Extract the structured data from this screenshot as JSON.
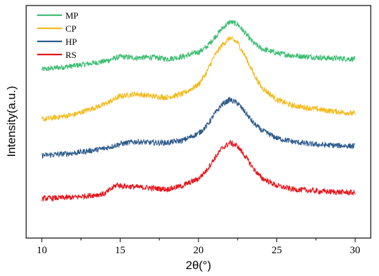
{
  "chart_data": {
    "type": "line",
    "title": "",
    "xlabel": "2θ(°)",
    "ylabel": "Intensity(a.u.)",
    "xlim": [
      9,
      31
    ],
    "ylim": [
      0,
      100
    ],
    "x_ticks": [
      10,
      15,
      20,
      25,
      30
    ],
    "y_ticks": [],
    "grid": false,
    "legend": {
      "placement": "top-left"
    },
    "series": [
      {
        "name": "MP",
        "color": "#3dbd72",
        "x": [
          10,
          12,
          14,
          15,
          16,
          17,
          18,
          19,
          20,
          20.5,
          21,
          21.5,
          22,
          22.5,
          23,
          23.5,
          24,
          25,
          26,
          27,
          28,
          30
        ],
        "y": [
          72.5,
          74,
          76,
          78,
          77.5,
          77.8,
          77,
          78,
          80,
          82,
          86,
          90,
          93,
          92,
          88,
          84,
          81.5,
          79.5,
          78.5,
          78,
          77.5,
          77
        ]
      },
      {
        "name": "CP",
        "color": "#f4ba1b",
        "x": [
          10,
          12,
          14,
          15,
          16,
          17,
          18,
          19,
          20,
          20.5,
          21,
          21.5,
          22,
          22.5,
          23,
          23.5,
          24,
          25,
          26,
          27,
          28,
          30
        ],
        "y": [
          51,
          53,
          57.5,
          61,
          62,
          61,
          60.5,
          62,
          66,
          71,
          78,
          83,
          86,
          84,
          78,
          71,
          65,
          59.5,
          57,
          56,
          55,
          53.5
        ]
      },
      {
        "name": "HP",
        "color": "#2b5a8c",
        "x": [
          10,
          12,
          14,
          15,
          16,
          17,
          18,
          19,
          20,
          20.5,
          21,
          21.5,
          22,
          22.5,
          23,
          23.5,
          24,
          25,
          26,
          27,
          28,
          30
        ],
        "y": [
          35.5,
          36.5,
          38.5,
          40.5,
          41.5,
          41,
          41,
          42,
          45,
          48,
          53,
          57.5,
          59.5,
          58,
          54,
          49.5,
          46.5,
          43,
          41.5,
          40.5,
          40,
          39.5
        ]
      },
      {
        "name": "RS",
        "color": "#e3161c",
        "x": [
          10,
          12,
          14,
          14.8,
          15,
          16,
          17,
          18,
          19,
          20,
          20.5,
          21,
          21.5,
          22,
          22.5,
          23,
          23.5,
          24,
          25,
          26,
          27,
          28,
          30
        ],
        "y": [
          17,
          17.5,
          19,
          23,
          22.5,
          22,
          21.5,
          21,
          22.5,
          25.5,
          29,
          34,
          38.5,
          41,
          39.5,
          35,
          30,
          26,
          22.5,
          21,
          20.5,
          20,
          19.5
        ]
      }
    ]
  }
}
